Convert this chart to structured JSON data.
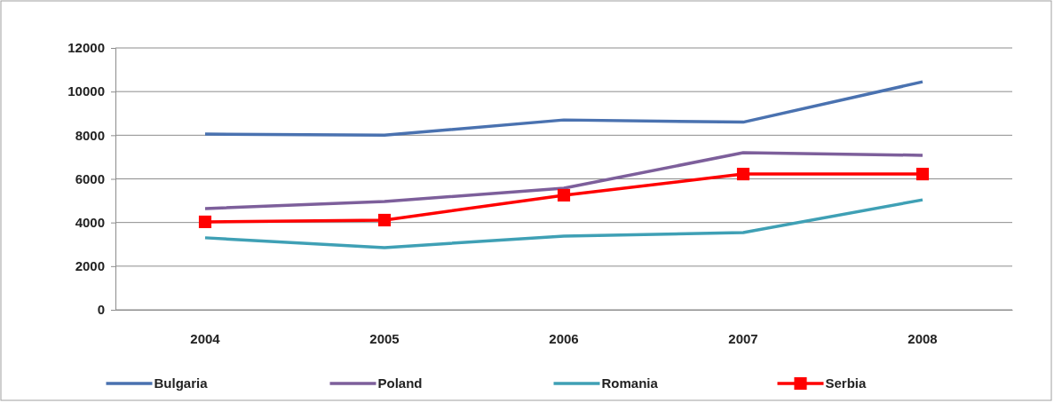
{
  "chart_data": {
    "type": "line",
    "categories": [
      "2004",
      "2005",
      "2006",
      "2007",
      "2008"
    ],
    "series": [
      {
        "name": "Bulgaria",
        "color": "#4a72b0",
        "values": [
          8050,
          8000,
          8700,
          8600,
          10450
        ]
      },
      {
        "name": "Poland",
        "color": "#7d5f9b",
        "values": [
          4640,
          4960,
          5570,
          7200,
          7080
        ]
      },
      {
        "name": "Romania",
        "color": "#3fa0b5",
        "values": [
          3300,
          2850,
          3380,
          3540,
          5040
        ]
      },
      {
        "name": "Serbia",
        "color": "#ff0000",
        "values": [
          4030,
          4110,
          5250,
          6220,
          6220
        ],
        "marker": "square"
      }
    ],
    "ylim": [
      0,
      12000
    ],
    "yticks": [
      0,
      2000,
      4000,
      6000,
      8000,
      10000,
      12000
    ],
    "grid": "y",
    "legend": "bottom",
    "marker": "none",
    "line_style": "solid"
  }
}
